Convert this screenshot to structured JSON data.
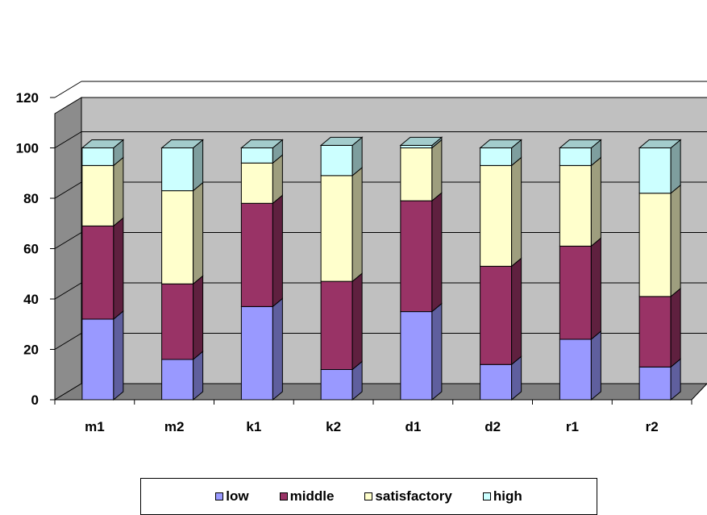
{
  "chart_data": {
    "type": "bar",
    "stacked": true,
    "three_d": true,
    "categories": [
      "m1",
      "m2",
      "k1",
      "k2",
      "d1",
      "d2",
      "r1",
      "r2"
    ],
    "series": [
      {
        "name": "low",
        "color": "#9999ff",
        "values": [
          32,
          16,
          37,
          12,
          35,
          14,
          24,
          13
        ]
      },
      {
        "name": "middle",
        "color": "#993366",
        "values": [
          37,
          30,
          41,
          35,
          44,
          39,
          37,
          28
        ]
      },
      {
        "name": "satisfactory",
        "color": "#ffffcc",
        "values": [
          24,
          37,
          16,
          42,
          21,
          40,
          32,
          41
        ]
      },
      {
        "name": "high",
        "color": "#ccffff",
        "values": [
          7,
          17,
          6,
          12,
          1,
          7,
          7,
          18
        ]
      }
    ],
    "ylim": [
      0,
      120
    ],
    "yticks": [
      "0",
      "20",
      "40",
      "60",
      "80",
      "100",
      "120"
    ],
    "grid": true,
    "legend_position": "bottom",
    "wall_color": "#c0c0c0",
    "floor_color": "#808080"
  }
}
